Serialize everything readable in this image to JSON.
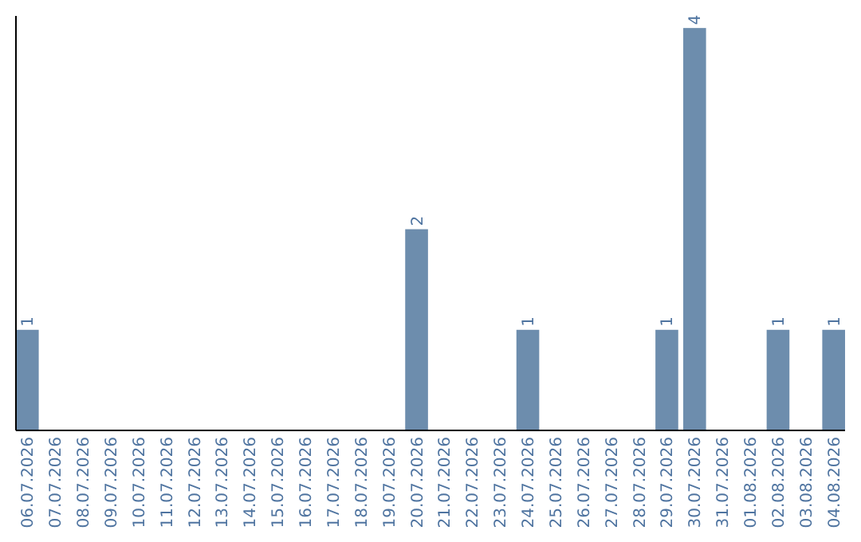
{
  "chart_data": {
    "type": "bar",
    "categories": [
      "06.07.2026",
      "07.07.2026",
      "08.07.2026",
      "09.07.2026",
      "10.07.2026",
      "11.07.2026",
      "12.07.2026",
      "13.07.2026",
      "14.07.2026",
      "15.07.2026",
      "16.07.2026",
      "17.07.2026",
      "18.07.2026",
      "19.07.2026",
      "20.07.2026",
      "21.07.2026",
      "22.07.2026",
      "23.07.2026",
      "24.07.2026",
      "25.07.2026",
      "26.07.2026",
      "27.07.2026",
      "28.07.2026",
      "29.07.2026",
      "30.07.2026",
      "31.07.2026",
      "01.08.2026",
      "02.08.2026",
      "03.08.2026",
      "04.08.2026"
    ],
    "values": [
      1,
      0,
      0,
      0,
      0,
      0,
      0,
      0,
      0,
      0,
      0,
      0,
      0,
      0,
      2,
      0,
      0,
      0,
      1,
      0,
      0,
      0,
      0,
      1,
      4,
      0,
      0,
      1,
      0,
      1
    ],
    "value_labels": [
      "1",
      null,
      null,
      null,
      null,
      null,
      null,
      null,
      null,
      null,
      null,
      null,
      null,
      null,
      "2",
      null,
      null,
      null,
      "1",
      null,
      null,
      null,
      null,
      "1",
      "4",
      null,
      null,
      "1",
      null,
      "1"
    ],
    "color": "#6d8dad",
    "tick_labels": "x"
  }
}
